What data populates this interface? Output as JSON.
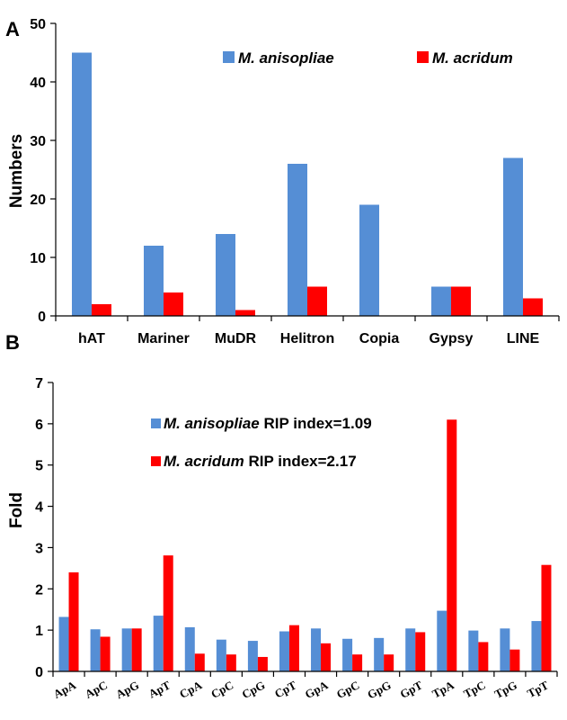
{
  "chart_data": [
    {
      "type": "bar",
      "panel_label": "A",
      "ylabel": "Numbers",
      "ylim": [
        0,
        50
      ],
      "yticks": [
        0,
        10,
        20,
        30,
        40,
        50
      ],
      "categories": [
        "hAT",
        "Mariner",
        "MuDR",
        "Helitron",
        "Copia",
        "Gypsy",
        "LINE"
      ],
      "legend_position": "top-right",
      "series": [
        {
          "name": "M. anisopliae",
          "color": "#558ED5",
          "values": [
            45,
            12,
            14,
            26,
            19,
            5,
            27
          ]
        },
        {
          "name": "M. acridum",
          "color": "#FF0000",
          "values": [
            2,
            4,
            1,
            5,
            0,
            5,
            3
          ]
        }
      ],
      "legend": [
        {
          "italic": "M. anisopliae",
          "suffix": ""
        },
        {
          "italic": "M. acridum",
          "suffix": ""
        }
      ]
    },
    {
      "type": "bar",
      "panel_label": "B",
      "ylabel": "Fold",
      "ylim": [
        0,
        7
      ],
      "yticks": [
        0,
        1,
        2,
        3,
        4,
        5,
        6,
        7
      ],
      "categories": [
        "ApA",
        "ApC",
        "ApG",
        "ApT",
        "CpA",
        "CpC",
        "CpG",
        "CpT",
        "GpA",
        "GpC",
        "GpG",
        "GpT",
        "TpA",
        "TpC",
        "TpG",
        "TpT"
      ],
      "legend_position": "top-left",
      "series": [
        {
          "name": "M. anisopliae",
          "color": "#558ED5",
          "values": [
            1.32,
            1.02,
            1.04,
            1.35,
            1.07,
            0.77,
            0.74,
            0.97,
            1.04,
            0.79,
            0.81,
            1.04,
            1.47,
            0.99,
            1.04,
            1.22
          ]
        },
        {
          "name": "M. acridum",
          "color": "#FF0000",
          "values": [
            2.4,
            0.84,
            1.04,
            2.81,
            0.43,
            0.41,
            0.35,
            1.12,
            0.68,
            0.41,
            0.41,
            0.95,
            6.1,
            0.71,
            0.53,
            2.58
          ]
        }
      ],
      "legend": [
        {
          "italic": "M. anisopliae",
          "suffix": " RIP index=1.09"
        },
        {
          "italic": "M. acridum",
          "suffix": " RIP index=2.17"
        }
      ]
    }
  ]
}
